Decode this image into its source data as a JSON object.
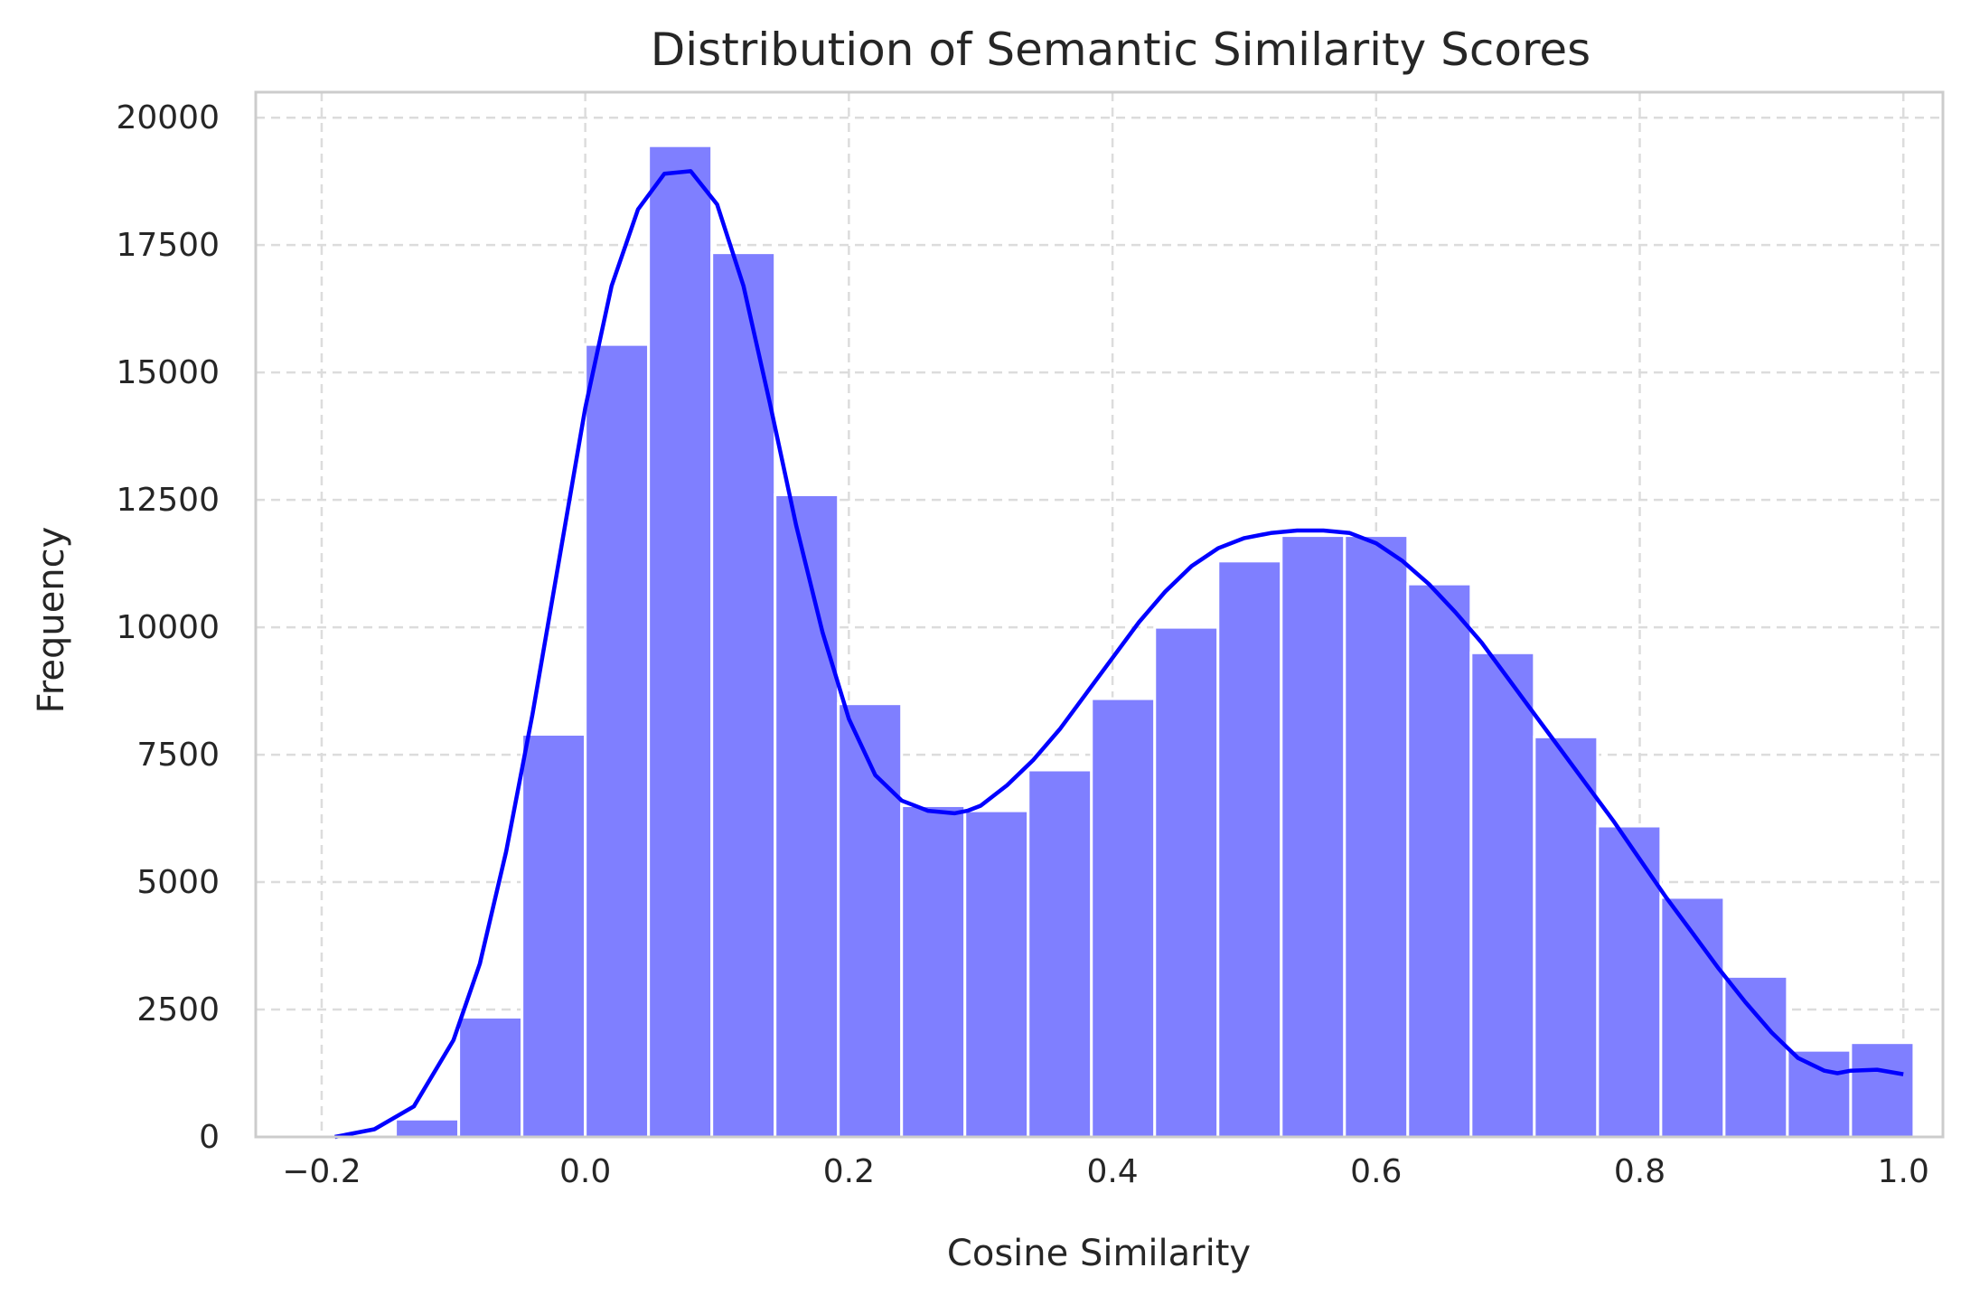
{
  "chart_data": {
    "type": "bar",
    "title": "Distribution of Semantic Similarity Scores",
    "xlabel": "Cosine Similarity",
    "ylabel": "Frequency",
    "xlim": [
      -0.25,
      1.03
    ],
    "ylim": [
      0,
      20500
    ],
    "xticks": [
      -0.2,
      0.0,
      0.2,
      0.4,
      0.6,
      0.8,
      1.0
    ],
    "xtick_labels": [
      "−0.2",
      "0.0",
      "0.2",
      "0.4",
      "0.6",
      "0.8",
      "1.0"
    ],
    "yticks": [
      0,
      2500,
      5000,
      7500,
      10000,
      12500,
      15000,
      17500,
      20000
    ],
    "ytick_labels": [
      "0",
      "2500",
      "5000",
      "7500",
      "10000",
      "12500",
      "15000",
      "17500",
      "20000"
    ],
    "grid": true,
    "colors": {
      "bars": "#7f7fff",
      "kde": "#0000ff",
      "grid": "#dcdcdc",
      "frame": "#cccccc"
    },
    "bins": [
      {
        "x0": -0.144,
        "x1": -0.096,
        "count": 350
      },
      {
        "x0": -0.096,
        "x1": -0.048,
        "count": 2350
      },
      {
        "x0": -0.048,
        "x1": 0.0,
        "count": 7900
      },
      {
        "x0": 0.0,
        "x1": 0.048,
        "count": 15550
      },
      {
        "x0": 0.048,
        "x1": 0.096,
        "count": 19450
      },
      {
        "x0": 0.096,
        "x1": 0.144,
        "count": 17350
      },
      {
        "x0": 0.144,
        "x1": 0.192,
        "count": 12600
      },
      {
        "x0": 0.192,
        "x1": 0.24,
        "count": 8500
      },
      {
        "x0": 0.24,
        "x1": 0.288,
        "count": 6500
      },
      {
        "x0": 0.288,
        "x1": 0.336,
        "count": 6400
      },
      {
        "x0": 0.336,
        "x1": 0.384,
        "count": 7200
      },
      {
        "x0": 0.384,
        "x1": 0.432,
        "count": 8600
      },
      {
        "x0": 0.432,
        "x1": 0.48,
        "count": 10000
      },
      {
        "x0": 0.48,
        "x1": 0.528,
        "count": 11300
      },
      {
        "x0": 0.528,
        "x1": 0.576,
        "count": 11800
      },
      {
        "x0": 0.576,
        "x1": 0.624,
        "count": 11800
      },
      {
        "x0": 0.624,
        "x1": 0.672,
        "count": 10850
      },
      {
        "x0": 0.672,
        "x1": 0.72,
        "count": 9500
      },
      {
        "x0": 0.72,
        "x1": 0.768,
        "count": 7850
      },
      {
        "x0": 0.768,
        "x1": 0.816,
        "count": 6100
      },
      {
        "x0": 0.816,
        "x1": 0.864,
        "count": 4700
      },
      {
        "x0": 0.864,
        "x1": 0.912,
        "count": 3150
      },
      {
        "x0": 0.912,
        "x1": 0.96,
        "count": 1700
      },
      {
        "x0": 0.96,
        "x1": 1.008,
        "count": 1850
      }
    ],
    "kde": {
      "x": [
        -0.19,
        -0.16,
        -0.13,
        -0.1,
        -0.08,
        -0.06,
        -0.04,
        -0.02,
        0.0,
        0.02,
        0.04,
        0.06,
        0.08,
        0.1,
        0.12,
        0.14,
        0.16,
        0.18,
        0.2,
        0.22,
        0.24,
        0.26,
        0.28,
        0.29,
        0.3,
        0.32,
        0.34,
        0.36,
        0.38,
        0.4,
        0.42,
        0.44,
        0.46,
        0.48,
        0.5,
        0.52,
        0.54,
        0.56,
        0.58,
        0.6,
        0.62,
        0.64,
        0.66,
        0.68,
        0.7,
        0.72,
        0.74,
        0.76,
        0.78,
        0.8,
        0.82,
        0.84,
        0.86,
        0.88,
        0.9,
        0.92,
        0.94,
        0.95,
        0.96,
        0.98,
        1.0
      ],
      "y": [
        0,
        150,
        600,
        1900,
        3400,
        5600,
        8300,
        11300,
        14300,
        16700,
        18200,
        18900,
        18950,
        18300,
        16700,
        14400,
        12000,
        9900,
        8200,
        7100,
        6600,
        6400,
        6350,
        6400,
        6500,
        6900,
        7400,
        8000,
        8700,
        9400,
        10100,
        10700,
        11200,
        11550,
        11750,
        11850,
        11900,
        11900,
        11850,
        11650,
        11300,
        10850,
        10300,
        9700,
        9000,
        8300,
        7600,
        6900,
        6200,
        5450,
        4700,
        4000,
        3300,
        2650,
        2050,
        1550,
        1300,
        1250,
        1300,
        1320,
        1230
      ]
    }
  }
}
